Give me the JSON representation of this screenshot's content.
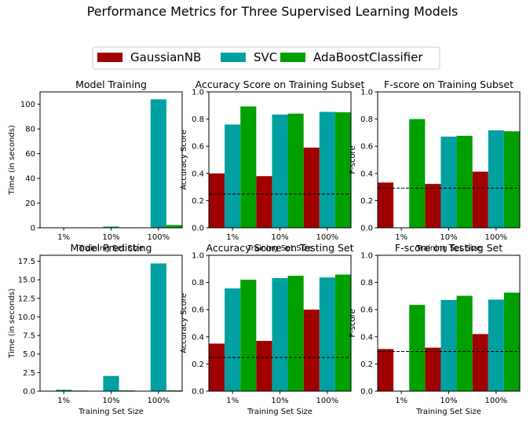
{
  "title": "Performance Metrics for Three Supervised Learning Models",
  "legend": {
    "placement": "top-center",
    "entries": [
      {
        "name": "GaussianNB",
        "color": "#a00000"
      },
      {
        "name": "SVC",
        "color": "#00a0a0"
      },
      {
        "name": "AdaBoostClassifier",
        "color": "#00a000"
      }
    ]
  },
  "chart_data": [
    {
      "type": "bar",
      "title": "Model Training",
      "xlabel": "Training Set Size",
      "ylabel": "Time (in seconds)",
      "categories": [
        "1%",
        "10%",
        "100%"
      ],
      "ylim": [
        0,
        110
      ],
      "yticks": [
        0,
        20,
        40,
        60,
        80,
        100
      ],
      "yticklabels": [
        "0",
        "20",
        "40",
        "60",
        "80",
        "100"
      ],
      "series": [
        {
          "name": "GaussianNB",
          "values": [
            0.01,
            0.05,
            0.3
          ]
        },
        {
          "name": "SVC",
          "values": [
            0.02,
            1.0,
            104.0
          ]
        },
        {
          "name": "AdaBoostClassifier",
          "values": [
            0.1,
            0.3,
            2.2
          ]
        }
      ]
    },
    {
      "type": "bar",
      "title": "Accuracy Score on Training Subset",
      "xlabel": "Training Set Size",
      "ylabel": "Accuracy Score",
      "categories": [
        "1%",
        "10%",
        "100%"
      ],
      "ylim": [
        0,
        1.0
      ],
      "yticks": [
        0,
        0.2,
        0.4,
        0.6,
        0.8,
        1.0
      ],
      "yticklabels": [
        "0.0",
        "0.2",
        "0.4",
        "0.6",
        "0.8",
        "1.0"
      ],
      "hline": 0.248,
      "series": [
        {
          "name": "GaussianNB",
          "values": [
            0.4,
            0.38,
            0.59
          ]
        },
        {
          "name": "SVC",
          "values": [
            0.76,
            0.833,
            0.853
          ]
        },
        {
          "name": "AdaBoostClassifier",
          "values": [
            0.893,
            0.84,
            0.85
          ]
        }
      ]
    },
    {
      "type": "bar",
      "title": "F-score on Training Subset",
      "xlabel": "Training Set Size",
      "ylabel": "F-score",
      "categories": [
        "1%",
        "10%",
        "100%"
      ],
      "ylim": [
        0,
        1.0
      ],
      "yticks": [
        0,
        0.2,
        0.4,
        0.6,
        0.8,
        1.0
      ],
      "yticklabels": [
        "0.0",
        "0.2",
        "0.4",
        "0.6",
        "0.8",
        "1.0"
      ],
      "hline": 0.292,
      "series": [
        {
          "name": "GaussianNB",
          "values": [
            0.333,
            0.323,
            0.413
          ]
        },
        {
          "name": "SVC",
          "values": [
            0.0,
            0.671,
            0.717
          ]
        },
        {
          "name": "AdaBoostClassifier",
          "values": [
            0.8,
            0.677,
            0.71
          ]
        }
      ]
    },
    {
      "type": "bar",
      "title": "Model Predicting",
      "xlabel": "Training Set Size",
      "ylabel": "Time (in seconds)",
      "categories": [
        "1%",
        "10%",
        "100%"
      ],
      "ylim": [
        0,
        18.3
      ],
      "yticks": [
        0,
        2.5,
        5.0,
        7.5,
        10.0,
        12.5,
        15.0,
        17.5
      ],
      "yticklabels": [
        "0.0",
        "2.5",
        "5.0",
        "7.5",
        "10.0",
        "12.5",
        "15.0",
        "17.5"
      ],
      "series": [
        {
          "name": "GaussianNB",
          "values": [
            0.02,
            0.02,
            0.05
          ]
        },
        {
          "name": "SVC",
          "values": [
            0.2,
            2.05,
            17.2
          ]
        },
        {
          "name": "AdaBoostClassifier",
          "values": [
            0.08,
            0.1,
            0.1
          ]
        }
      ]
    },
    {
      "type": "bar",
      "title": "Accuracy Score on Testing Set",
      "xlabel": "Training Set Size",
      "ylabel": "Accuracy Score",
      "categories": [
        "1%",
        "10%",
        "100%"
      ],
      "ylim": [
        0,
        1.0
      ],
      "yticks": [
        0,
        0.2,
        0.4,
        0.6,
        0.8,
        1.0
      ],
      "yticklabels": [
        "0.0",
        "0.2",
        "0.4",
        "0.6",
        "0.8",
        "1.0"
      ],
      "hline": 0.248,
      "series": [
        {
          "name": "GaussianNB",
          "values": [
            0.35,
            0.37,
            0.6
          ]
        },
        {
          "name": "SVC",
          "values": [
            0.756,
            0.832,
            0.837
          ]
        },
        {
          "name": "AdaBoostClassifier",
          "values": [
            0.82,
            0.849,
            0.858
          ]
        }
      ]
    },
    {
      "type": "bar",
      "title": "F-score on Testing Set",
      "xlabel": "Training Set Size",
      "ylabel": "F-score",
      "categories": [
        "1%",
        "10%",
        "100%"
      ],
      "ylim": [
        0,
        1.0
      ],
      "yticks": [
        0,
        0.2,
        0.4,
        0.6,
        0.8,
        1.0
      ],
      "yticklabels": [
        "0.0",
        "0.2",
        "0.4",
        "0.6",
        "0.8",
        "1.0"
      ],
      "hline": 0.292,
      "series": [
        {
          "name": "GaussianNB",
          "values": [
            0.31,
            0.32,
            0.42
          ]
        },
        {
          "name": "SVC",
          "values": [
            0.0,
            0.671,
            0.674
          ]
        },
        {
          "name": "AdaBoostClassifier",
          "values": [
            0.635,
            0.702,
            0.725
          ]
        }
      ]
    }
  ]
}
